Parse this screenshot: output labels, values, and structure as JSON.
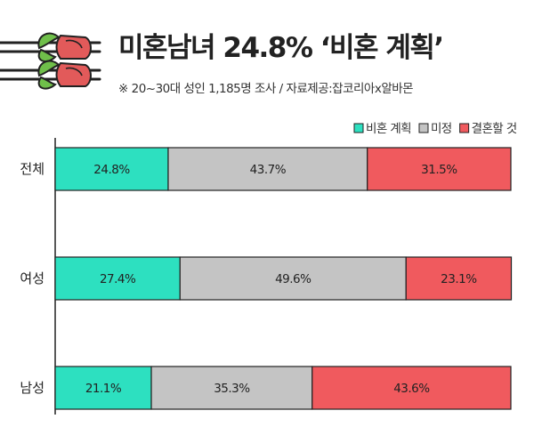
{
  "header": {
    "title": "미혼남녀 24.8% ‘비혼 계획’",
    "subtitle": "※ 20~30대 성인 1,185명 조사 / 자료제공:잡코리아x알바몬"
  },
  "colors": {
    "series": [
      "#2de0c0",
      "#c4c4c4",
      "#f05a5e"
    ],
    "border": "#222222",
    "rose_petal": "#e25a5a",
    "rose_leaf": "#6fbf4a"
  },
  "chart_data": {
    "type": "bar",
    "orientation": "horizontal",
    "stacked": true,
    "categories": [
      "전체",
      "여성",
      "남성"
    ],
    "series": [
      {
        "name": "비혼 계획",
        "values": [
          24.8,
          27.4,
          21.1
        ],
        "labels": [
          "24.8%",
          "27.4%",
          "21.1%"
        ]
      },
      {
        "name": "미정",
        "values": [
          43.7,
          49.6,
          35.3
        ],
        "labels": [
          "43.7%",
          "49.6%",
          "35.3%"
        ]
      },
      {
        "name": "결혼할 것",
        "values": [
          31.5,
          23.1,
          43.6
        ],
        "labels": [
          "31.5%",
          "23.1%",
          "43.6%"
        ]
      }
    ],
    "xlim": [
      0,
      100
    ],
    "legend": "top-right",
    "grid": false
  }
}
